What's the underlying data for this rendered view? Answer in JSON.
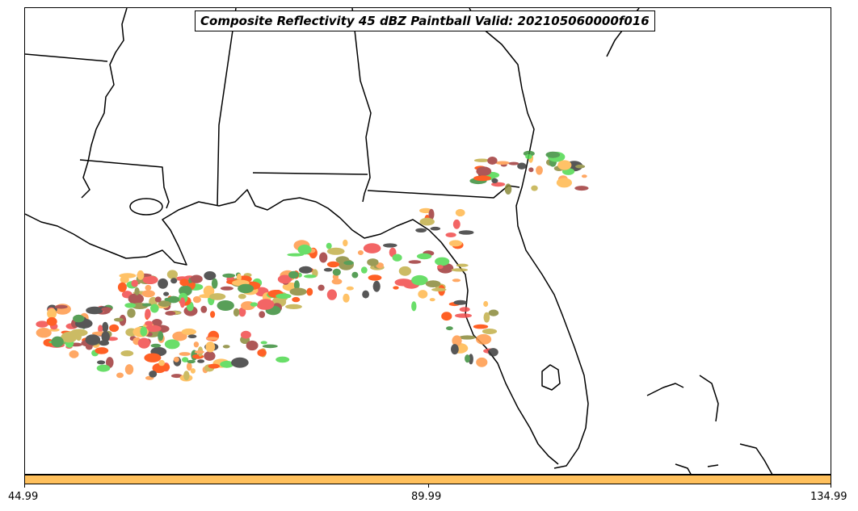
{
  "map": {
    "title": "Composite Reflectivity 45 dBZ Paintball Valid: 202105060000f016",
    "region": "Southeastern United States / Gulf of Mexico / Florida",
    "colors": {
      "coast": "#000000",
      "ensemble": [
        "#f24b4b",
        "#ff9a4a",
        "#3b8f3b",
        "#c2b04a",
        "#a13a3a",
        "#4fd94f",
        "#3a3a3a",
        "#ffb84d",
        "#8a8a3a",
        "#ff4500"
      ]
    }
  },
  "colorbar": {
    "color": "#ffc05c",
    "ticks": [
      "44.99",
      "89.99",
      "134.99"
    ]
  }
}
